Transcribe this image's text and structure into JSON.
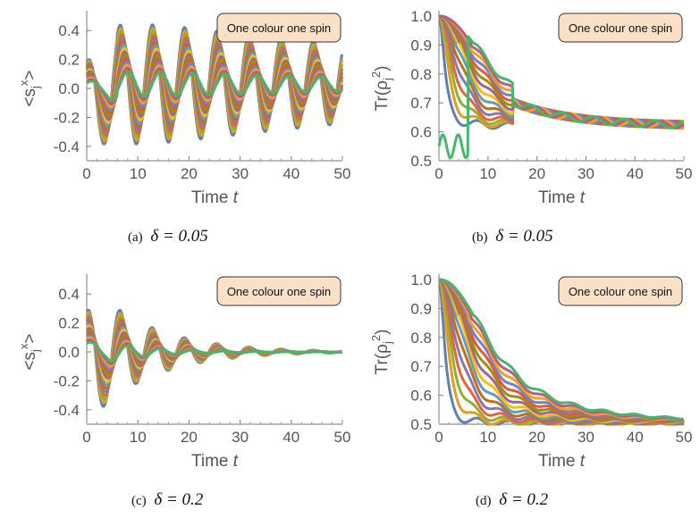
{
  "chart_data": [
    {
      "id": "a",
      "type": "line",
      "xlabel": "Time t",
      "ylabel": "<s_j^x>",
      "xlim": [
        0,
        50
      ],
      "ylim": [
        -0.5,
        0.5
      ],
      "xticks": [
        "0",
        "10",
        "20",
        "30",
        "40",
        "50"
      ],
      "yticks": [
        "-0.4",
        "-0.2",
        "0.0",
        "0.2",
        "0.4"
      ],
      "legend_text": "One colour one spin",
      "legend_position": "top-right",
      "caption_label": "(a)",
      "caption_math": "δ = 0.05",
      "series_kind": "sx",
      "decay": 0.012,
      "period": 6.3
    },
    {
      "id": "b",
      "type": "line",
      "xlabel": "Time t",
      "ylabel": "Tr(ρ_j^2)",
      "xlim": [
        0,
        50
      ],
      "ylim": [
        0.5,
        1.0
      ],
      "xticks": [
        "0",
        "10",
        "20",
        "30",
        "40",
        "50"
      ],
      "yticks": [
        "0.5",
        "0.6",
        "0.7",
        "0.8",
        "0.9",
        "1.0"
      ],
      "legend_text": "One colour one spin",
      "legend_position": "top-right",
      "caption_label": "(b)",
      "caption_math": "δ = 0.05",
      "series_kind": "purity",
      "final_value": 0.62
    },
    {
      "id": "c",
      "type": "line",
      "xlabel": "Time t",
      "ylabel": "<s_j^x>",
      "xlim": [
        0,
        50
      ],
      "ylim": [
        -0.5,
        0.5
      ],
      "xticks": [
        "0",
        "10",
        "20",
        "30",
        "40",
        "50"
      ],
      "yticks": [
        "-0.4",
        "-0.2",
        "0.0",
        "0.2",
        "0.4"
      ],
      "legend_text": "One colour one spin",
      "legend_position": "top-right",
      "caption_label": "(c)",
      "caption_math": "δ = 0.2",
      "series_kind": "sx",
      "decay": 0.085,
      "period": 6.3
    },
    {
      "id": "d",
      "type": "line",
      "xlabel": "Time t",
      "ylabel": "Tr(ρ_j^2)",
      "xlim": [
        0,
        50
      ],
      "ylim": [
        0.5,
        1.0
      ],
      "xticks": [
        "0",
        "10",
        "20",
        "30",
        "40",
        "50"
      ],
      "yticks": [
        "0.5",
        "0.6",
        "0.7",
        "0.8",
        "0.9",
        "1.0"
      ],
      "legend_text": "One colour one spin",
      "legend_position": "top-right",
      "caption_label": "(d)",
      "caption_math": "δ = 0.2",
      "series_kind": "purity",
      "final_value": 0.5
    }
  ],
  "series_colors": [
    "#5e81b5",
    "#e19c24",
    "#8fb032",
    "#eb6235",
    "#8778b3",
    "#c56e1a",
    "#5d9ec7",
    "#ffbf00",
    "#a5609d",
    "#929600",
    "#e95536",
    "#6685d9",
    "#f89f13",
    "#bc5b80",
    "#47b66d"
  ]
}
